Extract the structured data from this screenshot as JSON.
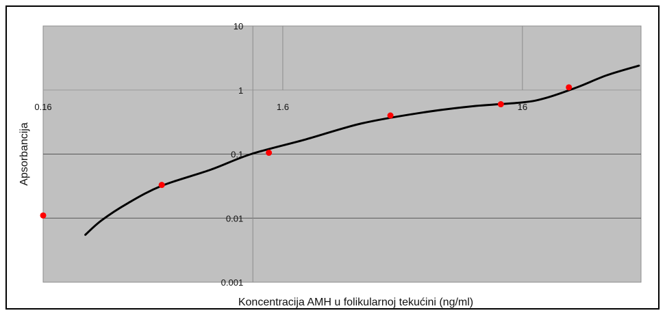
{
  "chart_data": {
    "type": "scatter",
    "title": "",
    "xlabel": "Koncentracija AMH u folikularnoj tekućini (ng/ml)",
    "ylabel": "Apsorbancija",
    "x_scale": "log",
    "y_scale": "log",
    "xlim": [
      0.16,
      50
    ],
    "ylim": [
      0.001,
      10
    ],
    "x_ticks": [
      {
        "value": 0.16,
        "label": "0.16"
      },
      {
        "value": 1.6,
        "label": "1.6"
      },
      {
        "value": 16,
        "label": "16"
      }
    ],
    "y_ticks": [
      {
        "value": 10,
        "label": "10"
      },
      {
        "value": 1,
        "label": "1"
      },
      {
        "value": 0.1,
        "label": "0.1"
      },
      {
        "value": 0.01,
        "label": "0.01"
      },
      {
        "value": 0.001,
        "label": "0.001"
      }
    ],
    "grid": true,
    "legend": "none",
    "series": [
      {
        "kind": "points",
        "color": "#ff0000",
        "points": [
          {
            "x": 0.16,
            "y": 0.011
          },
          {
            "x": 0.5,
            "y": 0.033
          },
          {
            "x": 1.4,
            "y": 0.105
          },
          {
            "x": 4.5,
            "y": 0.4
          },
          {
            "x": 13,
            "y": 0.6
          },
          {
            "x": 25,
            "y": 1.1
          }
        ]
      },
      {
        "kind": "curve",
        "color": "#000000",
        "points": [
          {
            "x": 0.24,
            "y": 0.0055
          },
          {
            "x": 0.28,
            "y": 0.0092
          },
          {
            "x": 0.36,
            "y": 0.017
          },
          {
            "x": 0.5,
            "y": 0.032
          },
          {
            "x": 0.8,
            "y": 0.057
          },
          {
            "x": 1.18,
            "y": 0.1
          },
          {
            "x": 2,
            "y": 0.17
          },
          {
            "x": 3.4,
            "y": 0.3
          },
          {
            "x": 6,
            "y": 0.44
          },
          {
            "x": 10,
            "y": 0.56
          },
          {
            "x": 16,
            "y": 0.64
          },
          {
            "x": 20,
            "y": 0.75
          },
          {
            "x": 27,
            "y": 1.1
          },
          {
            "x": 36,
            "y": 1.7
          },
          {
            "x": 49,
            "y": 2.4
          }
        ]
      }
    ]
  }
}
